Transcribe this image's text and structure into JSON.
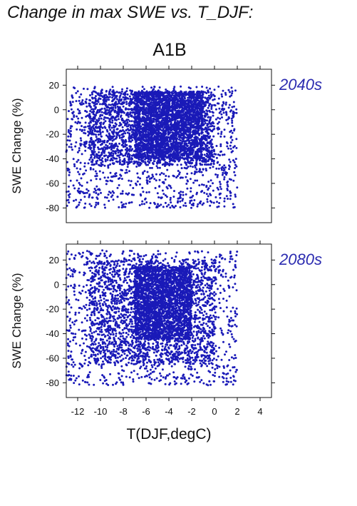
{
  "figure": {
    "title": "Change in max SWE vs. T_DJF:",
    "scenario": "A1B",
    "point_color": "#1a1ab8",
    "label_color": "#2b2bb0"
  },
  "chart_data": [
    {
      "type": "scatter",
      "period_label": "2040s",
      "xlabel": "T(DJF,degC)",
      "ylabel": "SWE Change (%)",
      "xlim": [
        -13,
        5
      ],
      "ylim": [
        -92,
        33
      ],
      "xticks": [
        -12,
        -10,
        -8,
        -6,
        -4,
        -2,
        0,
        2,
        4
      ],
      "yticks": [
        20,
        0,
        -20,
        -40,
        -60,
        -80
      ],
      "grid": false,
      "clusters": [
        {
          "x": [
            -13,
            2
          ],
          "y": [
            -80,
            19
          ],
          "note": "sparse"
        },
        {
          "x": [
            -11,
            0
          ],
          "y": [
            -45,
            15
          ],
          "note": "medium"
        },
        {
          "x": [
            -7,
            -1
          ],
          "y": [
            -40,
            15
          ],
          "note": "dense"
        }
      ]
    },
    {
      "type": "scatter",
      "period_label": "2080s",
      "xlabel": "T(DJF,degC)",
      "ylabel": "SWE Change (%)",
      "xlim": [
        -13,
        5
      ],
      "ylim": [
        -92,
        33
      ],
      "xticks": [
        -12,
        -10,
        -8,
        -6,
        -4,
        -2,
        0,
        2,
        4
      ],
      "yticks": [
        20,
        0,
        -20,
        -40,
        -60,
        -80
      ],
      "grid": false,
      "clusters": [
        {
          "x": [
            -13,
            2
          ],
          "y": [
            -82,
            28
          ],
          "note": "sparse"
        },
        {
          "x": [
            -11,
            0
          ],
          "y": [
            -65,
            20
          ],
          "note": "medium"
        },
        {
          "x": [
            -7,
            -2
          ],
          "y": [
            -45,
            15
          ],
          "note": "dense"
        }
      ]
    }
  ]
}
